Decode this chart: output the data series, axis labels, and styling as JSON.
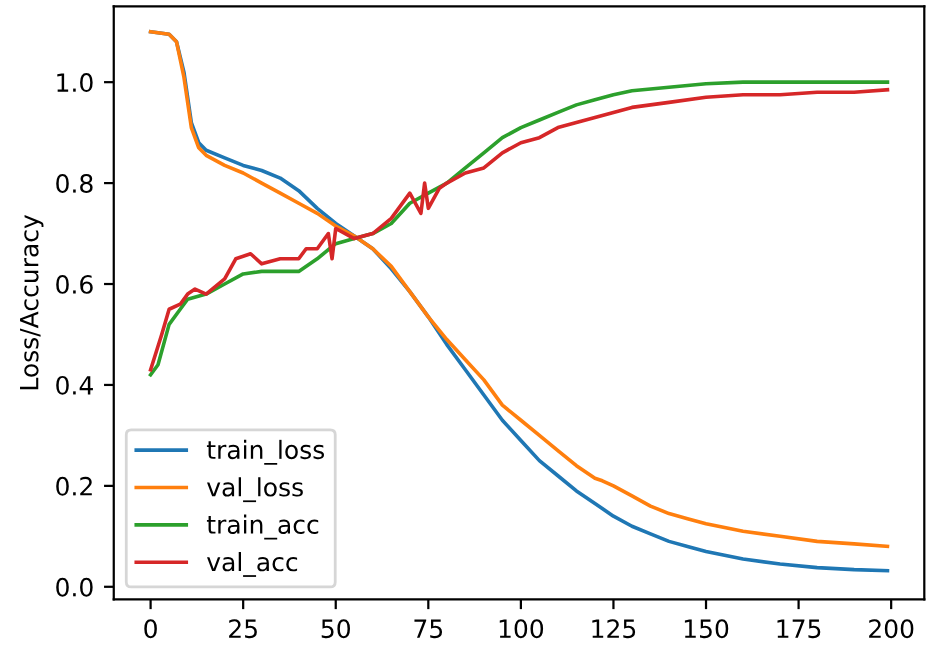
{
  "chart_data": {
    "type": "line",
    "ylabel": "Loss/Accuracy",
    "xlim": [
      -9.95,
      208.95
    ],
    "ylim": [
      -0.025,
      1.15
    ],
    "xticks": [
      0,
      25,
      50,
      75,
      100,
      125,
      150,
      175,
      200
    ],
    "yticks": [
      {
        "value": 0,
        "label": "0.0"
      },
      0.2,
      0.4,
      0.6,
      0.8,
      {
        "value": 1,
        "label": "1.0"
      }
    ],
    "legend": "bottom left",
    "grid": false,
    "series": [
      {
        "name": "train_loss",
        "color": "#1f77b4",
        "x": [
          0,
          5,
          7,
          9,
          11,
          13,
          15,
          20,
          25,
          30,
          35,
          40,
          45,
          50,
          55,
          60,
          65,
          70,
          75,
          80,
          85,
          90,
          95,
          100,
          105,
          110,
          115,
          120,
          125,
          130,
          135,
          140,
          145,
          150,
          160,
          170,
          180,
          190,
          199
        ],
        "values": [
          1.1,
          1.095,
          1.08,
          1.02,
          0.92,
          0.88,
          0.865,
          0.85,
          0.835,
          0.825,
          0.81,
          0.785,
          0.75,
          0.72,
          0.695,
          0.67,
          0.63,
          0.585,
          0.535,
          0.48,
          0.43,
          0.38,
          0.33,
          0.29,
          0.25,
          0.22,
          0.19,
          0.165,
          0.14,
          0.12,
          0.105,
          0.09,
          0.08,
          0.07,
          0.055,
          0.045,
          0.038,
          0.034,
          0.032
        ]
      },
      {
        "name": "val_loss",
        "color": "#ff7f0e",
        "x": [
          0,
          5,
          7,
          9,
          11,
          13,
          15,
          20,
          25,
          30,
          35,
          40,
          45,
          50,
          55,
          60,
          65,
          70,
          75,
          80,
          85,
          90,
          95,
          100,
          105,
          110,
          115,
          120,
          122,
          125,
          130,
          135,
          140,
          145,
          150,
          160,
          170,
          180,
          190,
          199
        ],
        "values": [
          1.1,
          1.095,
          1.08,
          1.01,
          0.91,
          0.87,
          0.855,
          0.835,
          0.82,
          0.8,
          0.78,
          0.76,
          0.74,
          0.715,
          0.695,
          0.67,
          0.635,
          0.585,
          0.535,
          0.49,
          0.45,
          0.41,
          0.36,
          0.33,
          0.3,
          0.27,
          0.24,
          0.215,
          0.21,
          0.2,
          0.18,
          0.16,
          0.145,
          0.135,
          0.125,
          0.11,
          0.1,
          0.09,
          0.085,
          0.08
        ]
      },
      {
        "name": "train_acc",
        "color": "#2ca02c",
        "x": [
          0,
          2,
          5,
          8,
          10,
          15,
          20,
          25,
          30,
          35,
          40,
          45,
          50,
          55,
          60,
          65,
          70,
          75,
          80,
          85,
          90,
          95,
          100,
          105,
          110,
          115,
          120,
          125,
          130,
          140,
          150,
          160,
          199
        ],
        "values": [
          0.42,
          0.44,
          0.52,
          0.55,
          0.57,
          0.58,
          0.6,
          0.62,
          0.625,
          0.625,
          0.625,
          0.65,
          0.68,
          0.69,
          0.7,
          0.72,
          0.76,
          0.78,
          0.8,
          0.83,
          0.86,
          0.89,
          0.91,
          0.925,
          0.94,
          0.955,
          0.965,
          0.975,
          0.983,
          0.99,
          0.997,
          1.0,
          1.0
        ]
      },
      {
        "name": "val_acc",
        "color": "#d62728",
        "x": [
          0,
          3,
          5,
          8,
          10,
          12,
          15,
          20,
          23,
          27,
          30,
          35,
          40,
          42,
          45,
          48,
          49,
          50,
          55,
          60,
          65,
          70,
          73,
          74,
          75,
          78,
          80,
          85,
          90,
          95,
          100,
          105,
          110,
          115,
          120,
          125,
          130,
          140,
          150,
          160,
          170,
          180,
          190,
          199
        ],
        "values": [
          0.43,
          0.5,
          0.55,
          0.56,
          0.58,
          0.59,
          0.58,
          0.61,
          0.65,
          0.66,
          0.64,
          0.65,
          0.65,
          0.67,
          0.67,
          0.7,
          0.65,
          0.71,
          0.69,
          0.7,
          0.73,
          0.78,
          0.74,
          0.8,
          0.75,
          0.79,
          0.8,
          0.82,
          0.83,
          0.86,
          0.88,
          0.89,
          0.91,
          0.92,
          0.93,
          0.94,
          0.95,
          0.96,
          0.97,
          0.975,
          0.975,
          0.98,
          0.98,
          0.985
        ]
      }
    ]
  }
}
